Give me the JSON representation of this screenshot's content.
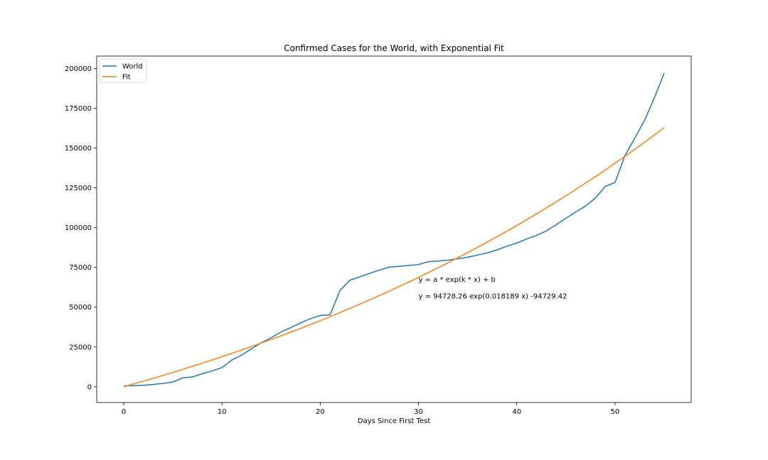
{
  "chart_data": {
    "type": "line",
    "title": "Confirmed Cases for the World, with Exponential Fit",
    "xlabel": "Days Since First Test",
    "ylabel": "",
    "xlim": [
      -2.75,
      57.75
    ],
    "ylim": [
      -9900,
      207800
    ],
    "xticks": [
      0,
      10,
      20,
      30,
      40,
      50
    ],
    "yticks": [
      0,
      25000,
      50000,
      75000,
      100000,
      125000,
      150000,
      175000,
      200000
    ],
    "grid": false,
    "legend": "top-left",
    "series": [
      {
        "name": "World",
        "color": "#1f77b4",
        "x": [
          0,
          1,
          2,
          3,
          4,
          5,
          6,
          7,
          8,
          9,
          10,
          11,
          12,
          13,
          14,
          15,
          16,
          17,
          18,
          19,
          20,
          21,
          22,
          23,
          24,
          25,
          26,
          27,
          28,
          29,
          30,
          31,
          32,
          33,
          34,
          35,
          36,
          37,
          38,
          39,
          40,
          41,
          42,
          43,
          44,
          45,
          46,
          47,
          48,
          49,
          50,
          51,
          52,
          53,
          54,
          55
        ],
        "y": [
          555,
          654,
          941,
          1434,
          2118,
          2927,
          5578,
          6166,
          8234,
          9927,
          12038,
          16787,
          19881,
          23892,
          27635,
          30817,
          34391,
          37120,
          40150,
          42762,
          44802,
          45221,
          60368,
          66885,
          69030,
          71226,
          73260,
          75138,
          75641,
          76199,
          76843,
          78599,
          78985,
          79570,
          80415,
          81397,
          82756,
          84124,
          86013,
          88371,
          90309,
          92844,
          95124,
          97886,
          101801,
          105847,
          109821,
          113590,
          118582,
          125865,
          128343,
          145193,
          156097,
          167449,
          181531,
          197146
        ]
      },
      {
        "name": "Fit",
        "color": "#ff7f0e",
        "fit": {
          "a": 94728.26,
          "k": 0.018189,
          "b": -94729.42
        },
        "x": [
          0,
          5,
          10,
          15,
          20,
          25,
          30,
          35,
          40,
          45,
          50,
          55
        ],
        "y": [
          0,
          8992,
          18831,
          29051,
          42200,
          54700,
          69800,
          84700,
          100800,
          118100,
          140000,
          162700
        ]
      }
    ],
    "annotations": [
      {
        "text": "y = a * exp(k * x) + b",
        "x": 30,
        "y": 66000
      },
      {
        "text": "y = 94728.26 exp(0.018189 x) -94729.42",
        "x": 30,
        "y": 55500
      }
    ]
  }
}
